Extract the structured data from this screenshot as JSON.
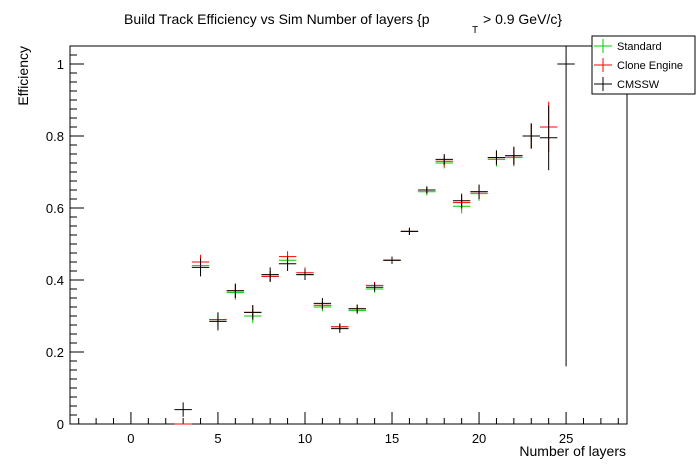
{
  "chart_data": {
    "type": "scatter",
    "title": {
      "main": "Build Track Efficiency vs Sim Number of layers {p",
      "subscript": "T",
      "suffix": " > 0.9 GeV/c}"
    },
    "xlabel": "Number of layers",
    "ylabel": "Efficiency",
    "xlim": [
      -3.5,
      28.5
    ],
    "ylim": [
      0,
      1.05
    ],
    "x_ticks": [
      0,
      5,
      10,
      15,
      20,
      25
    ],
    "y_ticks": [
      0,
      0.2,
      0.4,
      0.6,
      0.8,
      1
    ],
    "x_tick_labels": [
      "0",
      "5",
      "10",
      "15",
      "20",
      "25"
    ],
    "y_tick_labels": [
      "0",
      "0.2",
      "0.4",
      "0.6",
      "0.8",
      "1"
    ],
    "x_bin_width": 1,
    "legend": {
      "position": "top-right",
      "entries": [
        "Standard",
        "Clone Engine",
        "CMSSW"
      ]
    },
    "series": [
      {
        "name": "Standard",
        "color": "#00cc00",
        "x": [
          3,
          4,
          5,
          6,
          7,
          8,
          9,
          10,
          11,
          12,
          13,
          14,
          15,
          16,
          17,
          18,
          19,
          20,
          21,
          22,
          23
        ],
        "y": [
          0.0,
          0.44,
          0.29,
          0.365,
          0.3,
          0.41,
          0.455,
          0.415,
          0.325,
          0.27,
          0.315,
          0.375,
          0.455,
          0.535,
          0.645,
          0.725,
          0.605,
          0.64,
          0.735,
          0.74,
          0.8
        ],
        "err": [
          0,
          0.02,
          0.02,
          0.02,
          0.02,
          0.015,
          0.015,
          0.015,
          0.012,
          0.01,
          0.01,
          0.01,
          0.01,
          0.01,
          0.01,
          0.015,
          0.02,
          0.02,
          0.02,
          0.025,
          0.035
        ]
      },
      {
        "name": "Clone Engine",
        "color": "#ff0000",
        "x": [
          3,
          4,
          5,
          6,
          7,
          8,
          9,
          10,
          11,
          12,
          13,
          14,
          15,
          16,
          17,
          18,
          19,
          20,
          21,
          22,
          23,
          24
        ],
        "y": [
          0.0,
          0.45,
          0.29,
          0.37,
          0.31,
          0.41,
          0.465,
          0.42,
          0.33,
          0.27,
          0.32,
          0.385,
          0.455,
          0.535,
          0.65,
          0.73,
          0.615,
          0.645,
          0.74,
          0.745,
          0.8,
          0.825
        ],
        "err": [
          0,
          0.02,
          0.02,
          0.02,
          0.02,
          0.015,
          0.015,
          0.015,
          0.012,
          0.01,
          0.01,
          0.01,
          0.01,
          0.01,
          0.01,
          0.015,
          0.02,
          0.02,
          0.02,
          0.025,
          0.035,
          0.07
        ]
      },
      {
        "name": "CMSSW",
        "color": "#000000",
        "x": [
          3,
          4,
          5,
          6,
          7,
          8,
          9,
          10,
          11,
          12,
          13,
          14,
          15,
          16,
          17,
          18,
          19,
          20,
          21,
          22,
          23,
          24,
          25
        ],
        "y": [
          0.04,
          0.435,
          0.285,
          0.37,
          0.31,
          0.415,
          0.445,
          0.415,
          0.335,
          0.265,
          0.32,
          0.38,
          0.455,
          0.535,
          0.65,
          0.735,
          0.62,
          0.645,
          0.74,
          0.745,
          0.8,
          0.795,
          1.0
        ],
        "err": [
          0.02,
          0.025,
          0.025,
          0.02,
          0.02,
          0.02,
          0.02,
          0.015,
          0.015,
          0.012,
          0.012,
          0.012,
          0.01,
          0.01,
          0.01,
          0.015,
          0.02,
          0.02,
          0.02,
          0.025,
          0.035,
          0.09,
          0.84
        ]
      }
    ]
  }
}
